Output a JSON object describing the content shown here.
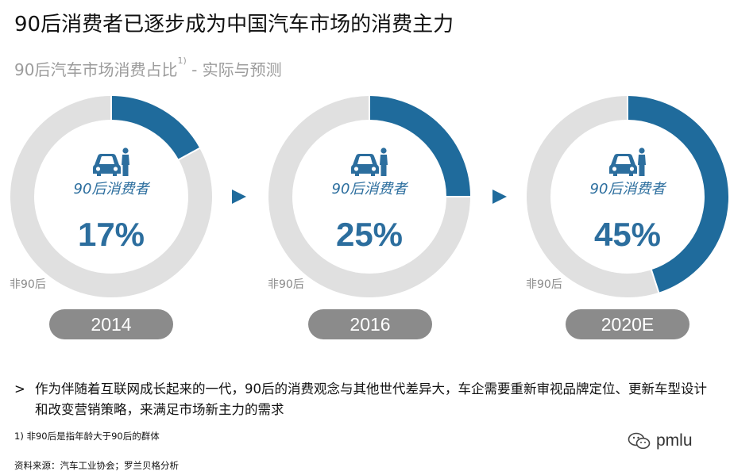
{
  "title": "90后消费者已逐步成为中国汽车市场的消费主力",
  "subtitle": {
    "text": "90后汽车市场消费占比",
    "sup": "1)",
    "suffix": " - 实际与预测"
  },
  "colors": {
    "accent": "#1f6b9c",
    "ring_bg": "#e0e0e0",
    "pill": "#8b8b8b",
    "label": "#2c6e9e"
  },
  "chart_data": [
    {
      "type": "pie",
      "year": "2014",
      "segments": [
        {
          "label": "90后消费者",
          "value": 17
        },
        {
          "label": "非90后",
          "value": 83
        }
      ],
      "value_label": "17%",
      "center_label": "90后消费者",
      "other_label": "非90后",
      "icon": "car-person-icon"
    },
    {
      "type": "pie",
      "year": "2016",
      "segments": [
        {
          "label": "90后消费者",
          "value": 25
        },
        {
          "label": "非90后",
          "value": 75
        }
      ],
      "value_label": "25%",
      "center_label": "90后消费者",
      "other_label": "非90后",
      "icon": "car-person-icon"
    },
    {
      "type": "pie",
      "year": "2020E",
      "segments": [
        {
          "label": "90后消费者",
          "value": 45
        },
        {
          "label": "非90后",
          "value": 55
        }
      ],
      "value_label": "45%",
      "center_label": "90后消费者",
      "other_label": "非90后",
      "icon": "car-person-icon"
    }
  ],
  "arrows": [
    "chevron-right-icon",
    "chevron-right-icon"
  ],
  "note": {
    "bullet": ">",
    "text": "作为伴随着互联网成长起来的一代，90后的消费观念与其他世代差异大，车企需要重新审视品牌定位、更新车型设计和改变营销策略，来满足市场新主力的需求"
  },
  "footnote": "1) 非90后是指年龄大于90后的群体",
  "source": "资料来源：汽车工业协会；罗兰贝格分析",
  "watermark": {
    "text": "pmlu",
    "icon": "wechat-icon"
  }
}
